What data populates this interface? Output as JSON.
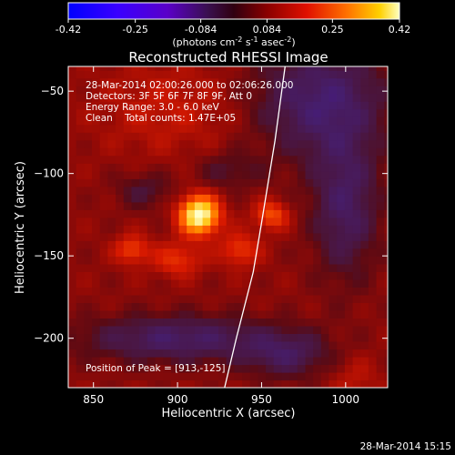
{
  "colorbar": {
    "ticks": [
      "-0.42",
      "-0.25",
      "-0.084",
      "0.084",
      "0.25",
      "0.42"
    ],
    "units_main": "(photons cm",
    "units_sup1": "-2",
    "units_mid": " s",
    "units_sup2": "-1",
    "units_end": " asec",
    "units_sup3": "-2",
    "units_close": ")"
  },
  "chart_data": {
    "type": "heatmap",
    "title": "Reconstructed RHESSI Image",
    "xlabel": "Heliocentric X (arcsec)",
    "ylabel": "Heliocentric Y (arcsec)",
    "xlim": [
      835,
      1025
    ],
    "ylim": [
      -230,
      -35
    ],
    "x_ticks": [
      850,
      900,
      950,
      1000
    ],
    "y_ticks": [
      -50,
      -100,
      -150,
      -200
    ],
    "value_range": [
      -0.42,
      0.42
    ],
    "colormap": "rhessi-diverging-blue-purple-red-yellow",
    "annotations": [
      "28-Mar-2014 02:00:26.000 to 02:06:26.000",
      "Detectors: 3F 5F 6F 7F 8F 9F, Att 0",
      "Energy Range: 3.0 - 6.0 keV",
      "Clean    Total counts: 1.47E+05"
    ],
    "peak_label": "Position of Peak = [913,-125]",
    "peak": {
      "x": 913,
      "y": -125,
      "value": 0.42
    },
    "sources": [
      {
        "x": 913,
        "y": -125,
        "value": 0.42
      },
      {
        "x": 956,
        "y": -125,
        "value": 0.2
      },
      {
        "x": 873,
        "y": -146,
        "value": 0.18
      },
      {
        "x": 937,
        "y": -146,
        "value": 0.17
      },
      {
        "x": 900,
        "y": -152,
        "value": 0.16
      }
    ],
    "limb_curve": [
      [
        964,
        -35
      ],
      [
        958,
        -80
      ],
      [
        950,
        -130
      ],
      [
        945,
        -160
      ],
      [
        935,
        -200
      ],
      [
        928,
        -230
      ]
    ]
  },
  "footer": {
    "timestamp": "28-Mar-2014 15:15"
  }
}
